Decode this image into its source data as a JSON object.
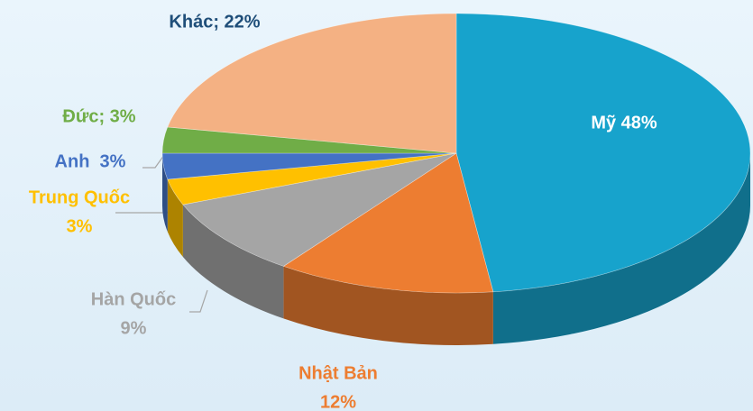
{
  "chart_data": {
    "type": "pie3d",
    "values": [
      48,
      12,
      9,
      3,
      3,
      3,
      22
    ],
    "value_labels": [
      [
        "Mỹ 48%"
      ],
      [
        "Nhật Bản",
        "12%"
      ],
      [
        "Hàn Quốc",
        "9%"
      ],
      [
        "Trung Quốc",
        "3%"
      ],
      [
        "Anh  3%"
      ],
      [
        "Đức; 3%"
      ],
      [
        "Khác; 22%"
      ]
    ],
    "colors": [
      "#17a3cc",
      "#ed7d31",
      "#a5a5a5",
      "#ffc000",
      "#4472c4",
      "#70ad47",
      "#f4b183"
    ]
  }
}
